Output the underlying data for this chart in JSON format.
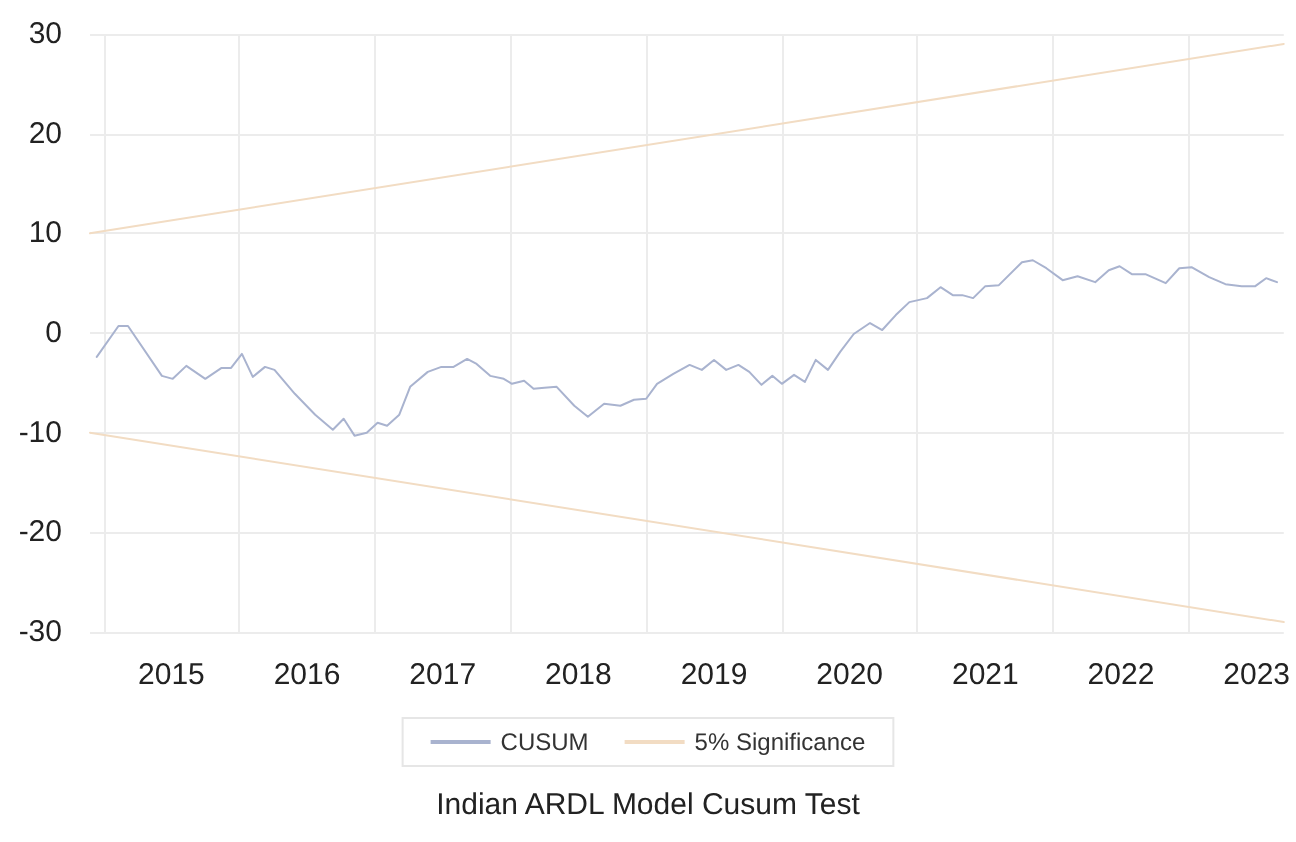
{
  "chart_data": {
    "type": "line",
    "title": "Indian ARDL Model Cusum Test",
    "xlim": [
      2014.9,
      2023.7
    ],
    "xticks": [
      {
        "value": 2015,
        "label": null
      },
      {
        "value": 2015.5,
        "label": "2015"
      },
      {
        "value": 2016,
        "label": null
      },
      {
        "value": 2016.5,
        "label": "2016"
      },
      {
        "value": 2017,
        "label": null
      },
      {
        "value": 2017.5,
        "label": "2017"
      },
      {
        "value": 2018,
        "label": null
      },
      {
        "value": 2018.5,
        "label": "2018"
      },
      {
        "value": 2019,
        "label": null
      },
      {
        "value": 2019.5,
        "label": "2019"
      },
      {
        "value": 2020,
        "label": null
      },
      {
        "value": 2020.5,
        "label": "2020"
      },
      {
        "value": 2021,
        "label": null
      },
      {
        "value": 2021.5,
        "label": "2021"
      },
      {
        "value": 2022,
        "label": null
      },
      {
        "value": 2022.5,
        "label": "2022"
      },
      {
        "value": 2023,
        "label": null
      },
      {
        "value": 2023.5,
        "label": "2023"
      }
    ],
    "ylim": [
      -30,
      30
    ],
    "yticks": [
      -30,
      -20,
      -10,
      0,
      10,
      20,
      30
    ],
    "grid": true,
    "legend": "bottom",
    "marker": "none",
    "line_style": "solid",
    "series": [
      {
        "name": "CUSUM",
        "color": "#a9b3cf",
        "x": [
          2014.95,
          2015.11,
          2015.18,
          2015.43,
          2015.51,
          2015.61,
          2015.75,
          2015.87,
          2015.94,
          2016.02,
          2016.1,
          2016.19,
          2016.26,
          2016.41,
          2016.56,
          2016.69,
          2016.77,
          2016.85,
          2016.94,
          2017.02,
          2017.09,
          2017.18,
          2017.26,
          2017.39,
          2017.49,
          2017.58,
          2017.68,
          2017.75,
          2017.85,
          2017.95,
          2018.01,
          2018.1,
          2018.17,
          2018.25,
          2018.34,
          2018.47,
          2018.57,
          2018.69,
          2018.81,
          2018.91,
          2019.0,
          2019.08,
          2019.2,
          2019.32,
          2019.41,
          2019.5,
          2019.59,
          2019.68,
          2019.76,
          2019.85,
          2019.93,
          2020.0,
          2020.09,
          2020.17,
          2020.25,
          2020.34,
          2020.43,
          2020.53,
          2020.65,
          2020.74,
          2020.84,
          2020.94,
          2021.07,
          2021.17,
          2021.26,
          2021.33,
          2021.41,
          2021.5,
          2021.6,
          2021.77,
          2021.85,
          2021.95,
          2022.07,
          2022.18,
          2022.31,
          2022.41,
          2022.49,
          2022.58,
          2022.68,
          2022.83,
          2022.93,
          2023.02,
          2023.15,
          2023.27,
          2023.39,
          2023.49,
          2023.57,
          2023.65
        ],
        "values": [
          -2.4,
          0.7,
          0.7,
          -4.3,
          -4.6,
          -3.3,
          -4.6,
          -3.5,
          -3.5,
          -2.1,
          -4.4,
          -3.4,
          -3.7,
          -6.1,
          -8.2,
          -9.7,
          -8.6,
          -10.3,
          -10.0,
          -9.0,
          -9.3,
          -8.2,
          -5.4,
          -3.9,
          -3.4,
          -3.4,
          -2.6,
          -3.1,
          -4.3,
          -4.6,
          -5.1,
          -4.8,
          -5.6,
          -5.5,
          -5.4,
          -7.3,
          -8.4,
          -7.1,
          -7.3,
          -6.7,
          -6.6,
          -5.1,
          -4.1,
          -3.2,
          -3.7,
          -2.7,
          -3.7,
          -3.2,
          -3.9,
          -5.2,
          -4.3,
          -5.1,
          -4.2,
          -4.9,
          -2.7,
          -3.7,
          -1.9,
          -0.1,
          1.0,
          0.3,
          1.8,
          3.1,
          3.5,
          4.6,
          3.8,
          3.8,
          3.5,
          4.7,
          4.8,
          7.1,
          7.3,
          6.5,
          5.3,
          5.7,
          5.1,
          6.3,
          6.7,
          5.9,
          5.9,
          5.0,
          6.5,
          6.6,
          5.6,
          4.9,
          4.7,
          4.7,
          5.5,
          5.1
        ]
      },
      {
        "name": "5% Significance",
        "color": "#f2dcc3",
        "x": [
          2014.9,
          2023.7
        ],
        "values": [
          10,
          29
        ]
      },
      {
        "color": "#f2dcc3",
        "x": [
          2014.9,
          2023.7
        ],
        "values": [
          -10,
          -29
        ]
      }
    ]
  }
}
